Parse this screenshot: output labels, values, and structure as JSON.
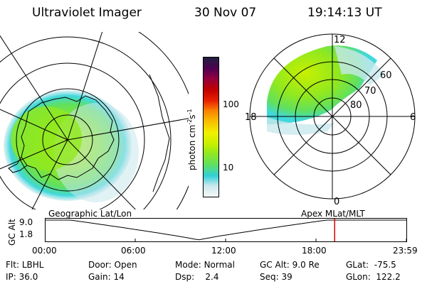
{
  "header": {
    "title": "Ultraviolet Imager",
    "date": "30 Nov 07",
    "time": "19:14:13 UT"
  },
  "colorbar": {
    "label": "photon cm",
    "label_sup1": "-2",
    "label_mid": "s",
    "label_sup2": "-1",
    "ticks": [
      "100",
      "10"
    ],
    "colors": [
      "#f8f8f8",
      "#c8e8ec",
      "#30d0d8",
      "#60e060",
      "#90e820",
      "#c8f000",
      "#f0f000",
      "#f8c000",
      "#f88000",
      "#e82000",
      "#c00000",
      "#900040",
      "#500050",
      "#202040"
    ]
  },
  "mag_map": {
    "labels_lat": [
      "60",
      "70",
      "80"
    ],
    "labels_mlt": {
      "top": "12",
      "bottom": "0",
      "left": "18",
      "right": "6"
    }
  },
  "plot_labels": {
    "left_title": "Geographic Lat/Lon",
    "right_title": "Apex  MLat/MLT"
  },
  "alt_plot": {
    "ylabel": "GC Alt",
    "yticks": [
      "9.0",
      "1.8"
    ],
    "xticks": [
      "00:00",
      "06:00",
      "12:00",
      "18:00",
      "23:59"
    ],
    "current_marker_hours": 19.24,
    "profile": {
      "max_alt": 9.0,
      "min_alt": 1.8,
      "perigee_hour": 10.2
    }
  },
  "info": {
    "flt_label": "Flt:",
    "flt_value": "LBHL",
    "ip_label": "IP:",
    "ip_value": "36.0",
    "door_label": "Door:",
    "door_value": "Open",
    "gain_label": "Gain:",
    "gain_value": "14",
    "mode_label": "Mode:",
    "mode_value": "Normal",
    "dsp_label": "Dsp:",
    "dsp_value": "2.4",
    "gcalt_label": "GC Alt:",
    "gcalt_value": "9.0 Re",
    "seq_label": "Seq:",
    "seq_value": "39",
    "glat_label": "GLat:",
    "glat_value": "-75.5",
    "glon_label": "GLon:",
    "glon_value": "122.2"
  },
  "colors": {
    "aurora_green": "#8ee020",
    "aurora_yellow": "#c8f000",
    "aurora_cyan": "#40d8dc",
    "marker_red": "#e00000"
  }
}
